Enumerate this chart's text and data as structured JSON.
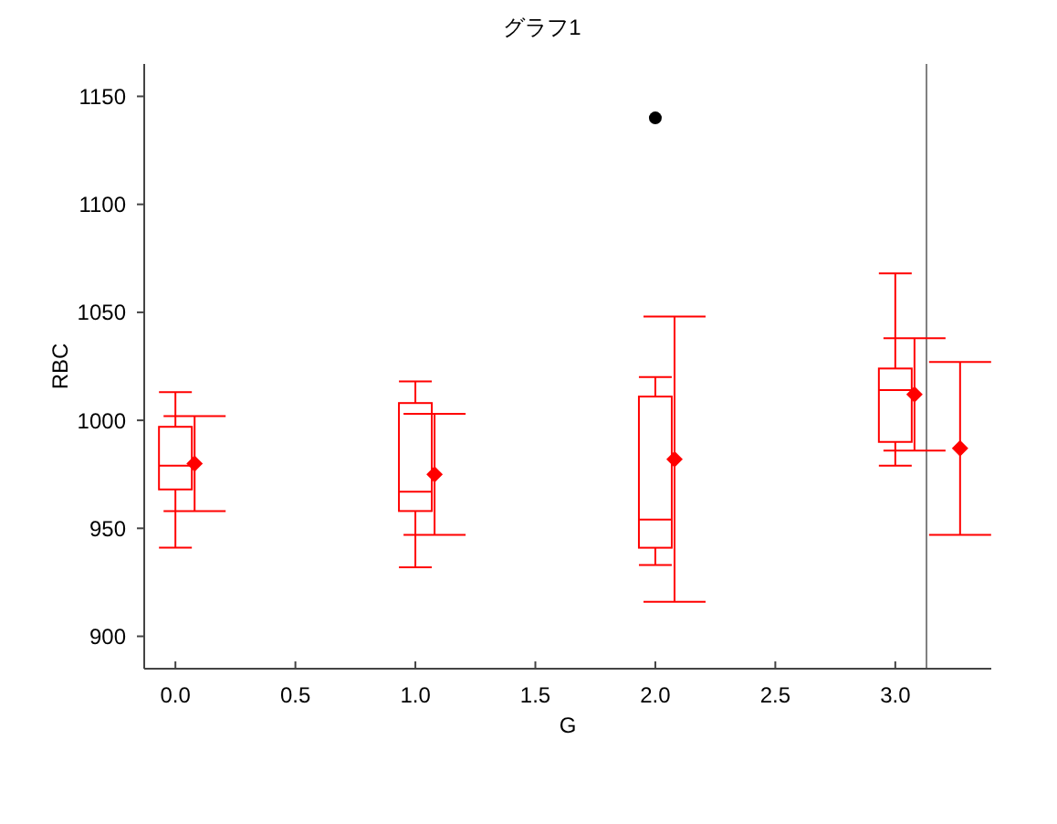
{
  "chart_data": {
    "type": "box",
    "title": "グラフ1",
    "xlabel": "G",
    "ylabel": "RBC",
    "xlim": [
      -0.13,
      3.4
    ],
    "xticks": [
      {
        "value": 0,
        "label": "0.0"
      },
      0.5,
      {
        "value": 1,
        "label": "1.0"
      },
      1.5,
      {
        "value": 2,
        "label": "2.0"
      },
      2.5,
      {
        "value": 3,
        "label": "3.0"
      }
    ],
    "ylim": [
      885,
      1165
    ],
    "yticks": [
      900,
      950,
      1000,
      1050,
      1100,
      1150
    ],
    "ref_lines": [
      {
        "axis": "x",
        "value": 3.13,
        "color": "#808080"
      }
    ],
    "series": [
      {
        "color": "#ff0000",
        "x": [
          0,
          1,
          2,
          3
        ],
        "boxes": [
          {
            "low": 941,
            "q1": 968,
            "median": 979,
            "q3": 997,
            "high": 1013
          },
          {
            "low": 932,
            "q1": 958,
            "median": 967,
            "q3": 1008,
            "high": 1018
          },
          {
            "low": 933,
            "q1": 941,
            "median": 954,
            "q3": 1011,
            "high": 1020
          },
          {
            "low": 979,
            "q1": 990,
            "median": 1014,
            "q3": 1024,
            "high": 1068
          }
        ]
      },
      {
        "type": "scatter",
        "color": "#ff0000",
        "marker": "diamond",
        "x": [
          0.08,
          1.08,
          2.08,
          3.08
        ],
        "values": [
          980,
          975,
          982,
          1012
        ],
        "errors": [
          22,
          28,
          66,
          26
        ]
      },
      {
        "type": "scatter",
        "color": "#000000",
        "marker": "circle",
        "x": [
          2
        ],
        "values": [
          1140
        ]
      },
      {
        "type": "scatter",
        "color": "#ff0000",
        "marker": "diamond",
        "x": [
          3.27
        ],
        "values": [
          987
        ],
        "errors": [
          40
        ]
      }
    ]
  }
}
